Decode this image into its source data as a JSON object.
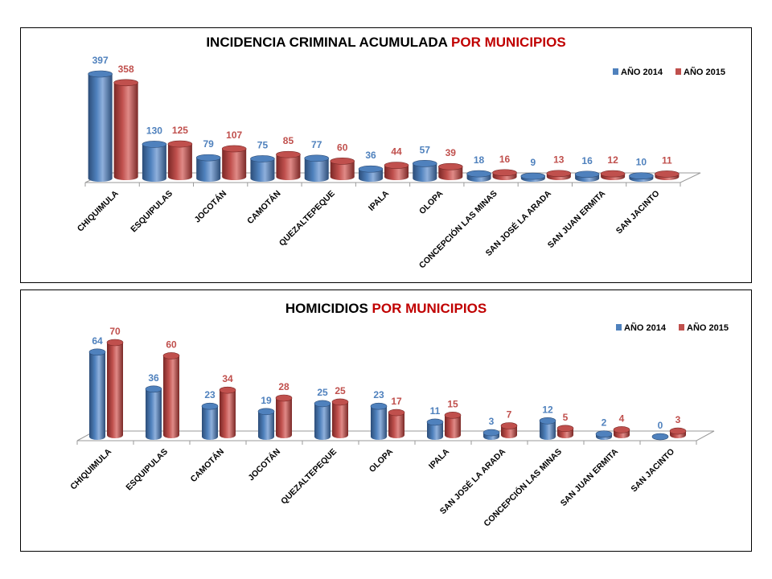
{
  "colors": {
    "series2014": "#4f81bd",
    "series2015": "#c0504d",
    "accent": "#c00000"
  },
  "chart_data": [
    {
      "type": "bar",
      "title_main": "INCIDENCIA CRIMINAL ACUMULADA",
      "title_accent": "POR MUNICIPIOS",
      "categories": [
        "CHIQUIMULA",
        "ESQUIPULAS",
        "JOCOTÁN",
        "CAMOTÁN",
        "QUEZALTEPEQUE",
        "IPALA",
        "OLOPA",
        "CONCEPCIÓN LAS MINAS",
        "SAN JOSÉ LA ARADA",
        "SAN JUAN ERMITA",
        "SAN JACINTO"
      ],
      "series": [
        {
          "name": "AÑO 2014",
          "values": [
            397,
            130,
            79,
            75,
            77,
            36,
            57,
            18,
            9,
            16,
            10
          ]
        },
        {
          "name": "AÑO 2015",
          "values": [
            358,
            125,
            107,
            85,
            60,
            44,
            39,
            16,
            13,
            12,
            11
          ]
        }
      ],
      "legend": "top-right",
      "grid": false
    },
    {
      "type": "bar",
      "title_main": "HOMICIDIOS",
      "title_accent": "POR MUNICIPIOS",
      "categories": [
        "CHIQUIMULA",
        "ESQUIPULAS",
        "CAMOTÁN",
        "JOCOTÁN",
        "QUEZALTEPEQUE",
        "OLOPA",
        "IPALA",
        "SAN JOSÉ LA ARADA",
        "CONCEPCIÓN LAS MINAS",
        "SAN JUAN ERMITA",
        "SAN JACINTO"
      ],
      "series": [
        {
          "name": "AÑO 2014",
          "values": [
            64,
            36,
            23,
            19,
            25,
            23,
            11,
            3,
            12,
            2,
            0
          ]
        },
        {
          "name": "AÑO 2015",
          "values": [
            70,
            60,
            34,
            28,
            25,
            17,
            15,
            7,
            5,
            4,
            3
          ]
        }
      ],
      "legend": "top-right",
      "grid": false
    }
  ]
}
